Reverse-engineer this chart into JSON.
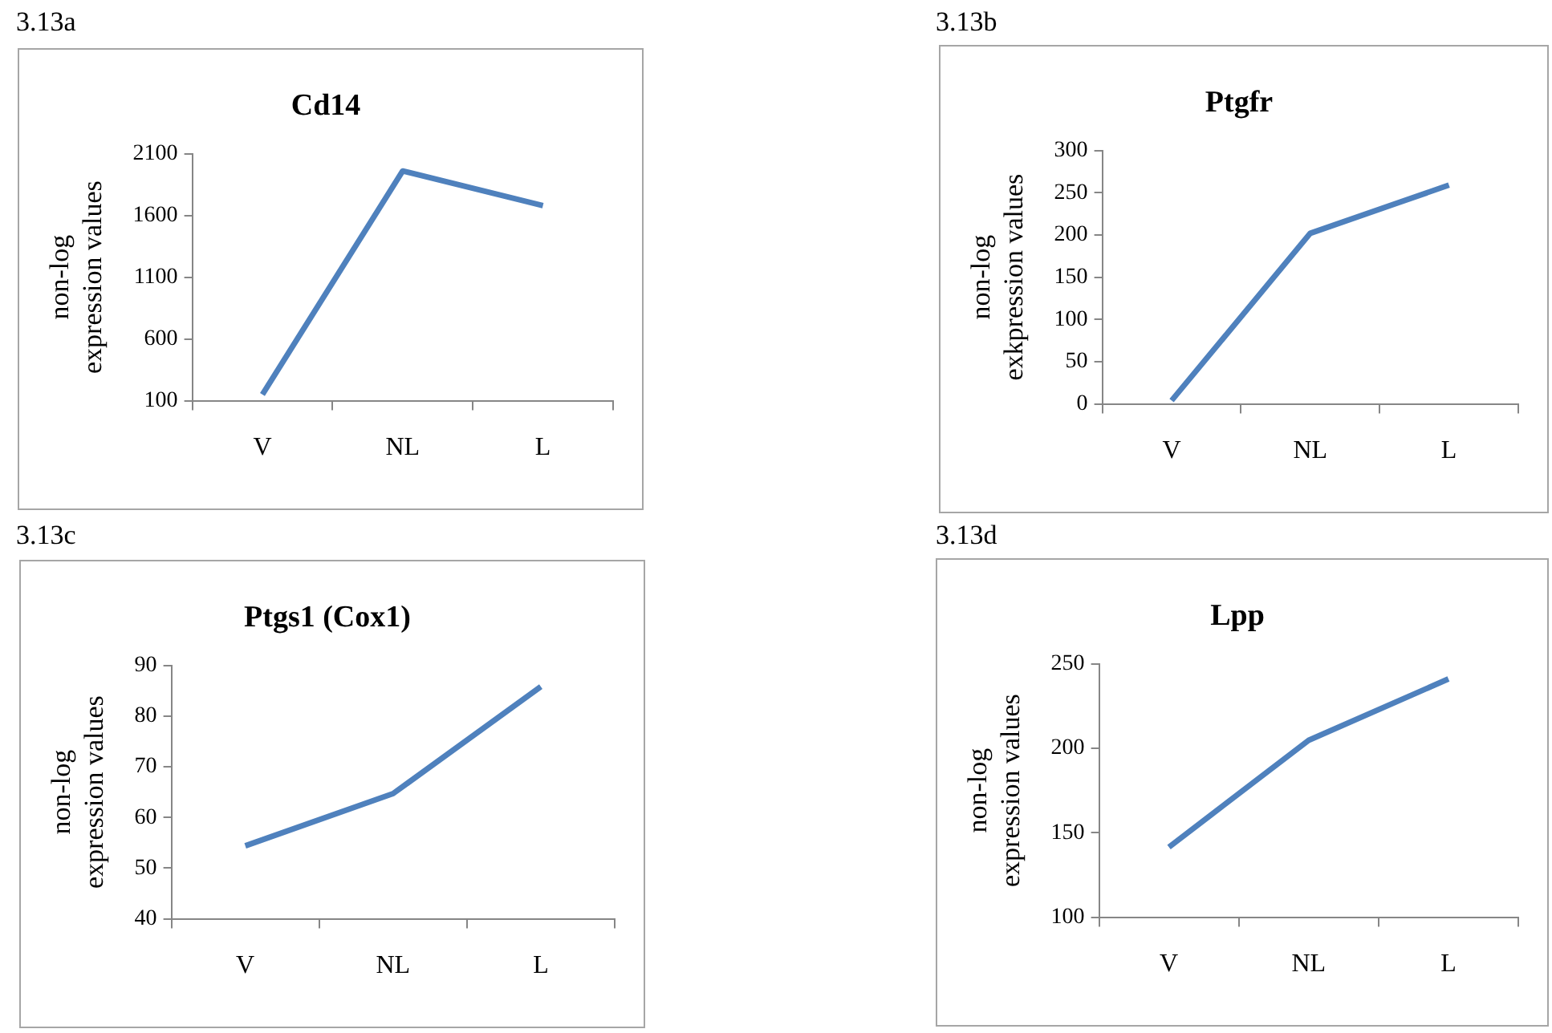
{
  "chart_data": [
    {
      "type": "line",
      "title": "Cd14",
      "ylabel": "non-log expression values",
      "annotations": [
        "3.13a"
      ],
      "categories": [
        "V",
        "NL",
        "L"
      ],
      "series": [
        {
          "color": "#4f81bd",
          "values": [
            150,
            1960,
            1680
          ]
        }
      ],
      "ylim": [
        100,
        2100
      ],
      "yticks": [
        100,
        600,
        1100,
        1600,
        2100
      ]
    },
    {
      "type": "line",
      "title": "Ptgfr",
      "ylabel": "non-log exkpression values",
      "annotations": [
        "3.13b"
      ],
      "categories": [
        "V",
        "NL",
        "L"
      ],
      "series": [
        {
          "color": "#4f81bd",
          "values": [
            4,
            202,
            259
          ]
        }
      ],
      "ylim": [
        0,
        300
      ],
      "yticks": [
        0,
        50,
        100,
        150,
        200,
        250,
        300
      ]
    },
    {
      "type": "line",
      "title": "Ptgs1 (Cox1)",
      "ylabel": "non-log expression values",
      "annotations": [
        "3.13c"
      ],
      "categories": [
        "V",
        "NL",
        "L"
      ],
      "series": [
        {
          "color": "#4f81bd",
          "values": [
            54.4,
            64.7,
            85.8
          ]
        }
      ],
      "ylim": [
        40,
        90
      ],
      "yticks": [
        40,
        50,
        60,
        70,
        80,
        90
      ]
    },
    {
      "type": "line",
      "title": "Lpp",
      "ylabel": "non-log expression values",
      "annotations": [
        "3.13d"
      ],
      "categories": [
        "V",
        "NL",
        "L"
      ],
      "series": [
        {
          "color": "#4f81bd",
          "values": [
            141.5,
            204.7,
            241
          ]
        }
      ],
      "ylim": [
        100,
        250
      ],
      "yticks": [
        100,
        150,
        200,
        250
      ]
    }
  ]
}
